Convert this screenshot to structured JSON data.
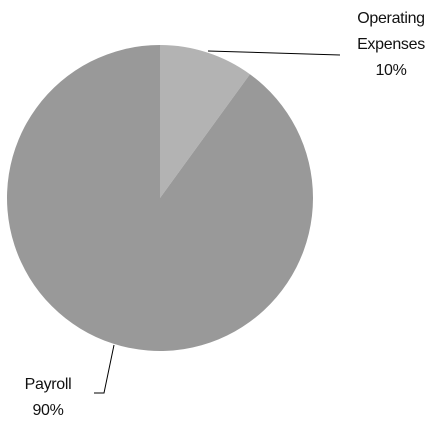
{
  "chart_data": {
    "type": "pie",
    "categories": [
      "Operating Expenses",
      "Payroll"
    ],
    "values": [
      10,
      90
    ],
    "value_labels": [
      "10%",
      "90%"
    ],
    "colors": [
      "#b3b3b3",
      "#999999"
    ]
  }
}
